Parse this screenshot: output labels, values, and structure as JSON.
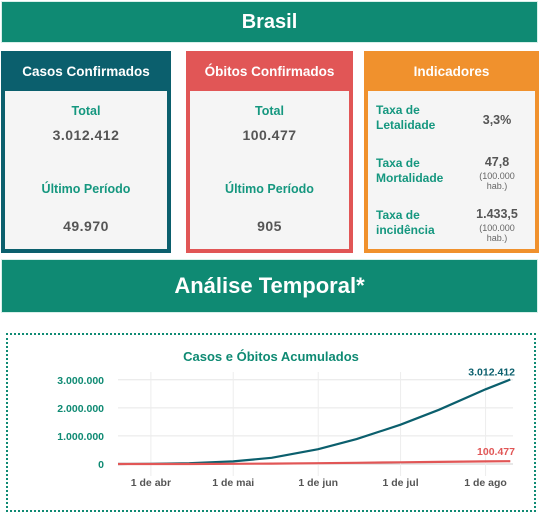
{
  "header": {
    "title": "Brasil"
  },
  "cards": {
    "confirmed_cases": {
      "title": "Casos Confirmados",
      "total_label": "Total",
      "total_value": "3.012.412",
      "period_label": "Último Período",
      "period_value": "49.970"
    },
    "confirmed_deaths": {
      "title": "Óbitos Confirmados",
      "total_label": "Total",
      "total_value": "100.477",
      "period_label": "Último Período",
      "period_value": "905"
    },
    "indicators": {
      "title": "Indicadores",
      "items": [
        {
          "name_line1": "Taxa de",
          "name_line2": "Letalidade",
          "value": "3,3%",
          "unit_line1": "",
          "unit_line2": ""
        },
        {
          "name_line1": "Taxa de",
          "name_line2": "Mortalidade",
          "value": "47,8",
          "unit_line1": "(100.000",
          "unit_line2": "hab.)"
        },
        {
          "name_line1": "Taxa de",
          "name_line2": "incidência",
          "value": "1.433,5",
          "unit_line1": "(100.000",
          "unit_line2": "hab.)"
        }
      ]
    }
  },
  "section": {
    "title": "Análise Temporal*"
  },
  "colors": {
    "teal": "#0f8a73",
    "dark_teal": "#0b5f6d",
    "red": "#e15656",
    "orange": "#f0912d",
    "cases_line": "#0b5f6d",
    "deaths_line": "#e15656"
  },
  "chart_data": {
    "type": "line",
    "title": "Casos e Óbitos Acumulados",
    "xlabel": "",
    "ylabel": "",
    "x_ticks": [
      "1 de abr",
      "1 de mai",
      "1 de jun",
      "1 de jul",
      "1 de ago"
    ],
    "y_ticks": [
      "0",
      "1.000.000",
      "2.000.000",
      "3.000.000"
    ],
    "ylim": [
      0,
      3100000
    ],
    "xlim": [
      "2020-03-20",
      "2020-08-11"
    ],
    "grid": true,
    "series": [
      {
        "name": "",
        "end_label": "3.012.412",
        "points": [
          [
            "2020-03-20",
            900
          ],
          [
            "2020-04-01",
            6800
          ],
          [
            "2020-04-15",
            28000
          ],
          [
            "2020-05-01",
            91000
          ],
          [
            "2020-05-15",
            220000
          ],
          [
            "2020-06-01",
            526000
          ],
          [
            "2020-06-15",
            888000
          ],
          [
            "2020-07-01",
            1400000
          ],
          [
            "2020-07-15",
            1930000
          ],
          [
            "2020-08-01",
            2660000
          ],
          [
            "2020-08-10",
            3012412
          ]
        ]
      },
      {
        "name": "",
        "end_label": "100.477",
        "points": [
          [
            "2020-03-20",
            11
          ],
          [
            "2020-04-01",
            240
          ],
          [
            "2020-04-15",
            1700
          ],
          [
            "2020-05-01",
            6300
          ],
          [
            "2020-05-15",
            14800
          ],
          [
            "2020-06-01",
            29900
          ],
          [
            "2020-06-15",
            44000
          ],
          [
            "2020-07-01",
            60000
          ],
          [
            "2020-07-15",
            75000
          ],
          [
            "2020-08-01",
            93000
          ],
          [
            "2020-08-10",
            100477
          ]
        ]
      }
    ]
  }
}
